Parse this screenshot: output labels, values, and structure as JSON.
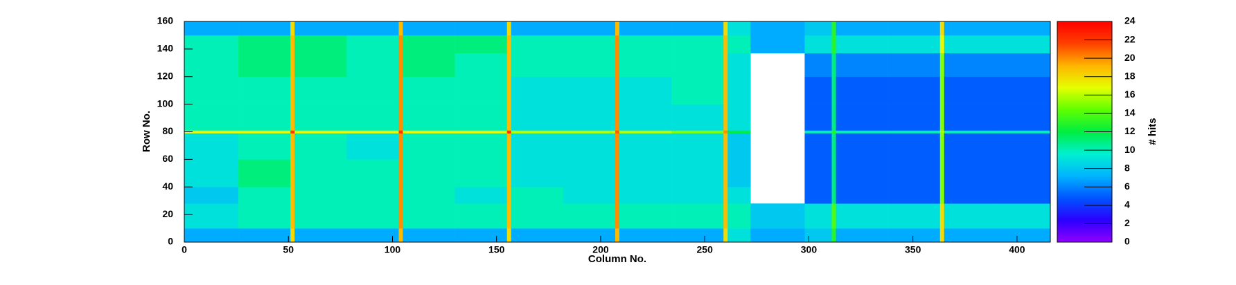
{
  "chart_data": {
    "type": "heatmap",
    "xlabel": "Column No.",
    "ylabel": "Row No.",
    "zlabel": "# hits",
    "xbins": [
      0,
      26,
      51,
      53,
      78,
      103,
      105,
      130,
      155,
      157,
      182,
      207,
      209,
      234,
      259,
      261,
      272,
      298,
      311,
      313,
      338,
      363,
      365,
      390,
      416
    ],
    "ybins": [
      0,
      10,
      28,
      40,
      60,
      79,
      81,
      100,
      120,
      137,
      150,
      160
    ],
    "values": [
      [
        7,
        7,
        18,
        7,
        7,
        19,
        7,
        7,
        18,
        7,
        7,
        19,
        7,
        7,
        18,
        9,
        7,
        8,
        13,
        7,
        7,
        18,
        7,
        7
      ],
      [
        9,
        10,
        19,
        10,
        10,
        20,
        10,
        10,
        19,
        10,
        10,
        20,
        10,
        10,
        19,
        10,
        8,
        9,
        14,
        9,
        9,
        18,
        9,
        9
      ],
      [
        8,
        10,
        19,
        10,
        10,
        20,
        10,
        9,
        19,
        10,
        9,
        20,
        9,
        9,
        19,
        9,
        null,
        5,
        11,
        5,
        5,
        15,
        5,
        5
      ],
      [
        9,
        11,
        19,
        10,
        10,
        20,
        10,
        10,
        19,
        9,
        9,
        20,
        9,
        9,
        19,
        8,
        null,
        5,
        11,
        5,
        5,
        15,
        5,
        5
      ],
      [
        9,
        10,
        19,
        10,
        9,
        20,
        10,
        10,
        19,
        9,
        9,
        20,
        9,
        9,
        19,
        8,
        null,
        5,
        11,
        5,
        5,
        15,
        5,
        5
      ],
      [
        17,
        17,
        22,
        17,
        17,
        22,
        17,
        17,
        22,
        16,
        16,
        21,
        16,
        15,
        20,
        12,
        null,
        10,
        13,
        10,
        10,
        16,
        10,
        10
      ],
      [
        10,
        10,
        19,
        10,
        10,
        20,
        10,
        10,
        19,
        9,
        9,
        20,
        9,
        9,
        19,
        9,
        null,
        5,
        11,
        5,
        5,
        15,
        5,
        5
      ],
      [
        10,
        10,
        19,
        10,
        10,
        20,
        10,
        10,
        19,
        9,
        9,
        20,
        9,
        10,
        19,
        9,
        null,
        5,
        11,
        5,
        5,
        15,
        5,
        5
      ],
      [
        10,
        11,
        19,
        11,
        10,
        20,
        11,
        10,
        19,
        10,
        10,
        20,
        10,
        10,
        19,
        9,
        null,
        6,
        11,
        6,
        6,
        15,
        6,
        6
      ],
      [
        10,
        11,
        19,
        11,
        10,
        20,
        11,
        11,
        19,
        10,
        10,
        20,
        10,
        10,
        19,
        10,
        7,
        9,
        13,
        9,
        9,
        17,
        9,
        9
      ],
      [
        7,
        7,
        18,
        7,
        7,
        19,
        7,
        7,
        18,
        7,
        7,
        19,
        7,
        7,
        18,
        9,
        7,
        8,
        13,
        7,
        7,
        18,
        7,
        7
      ]
    ],
    "xlim": [
      0,
      416
    ],
    "xticks": [
      0,
      50,
      100,
      150,
      200,
      250,
      300,
      350,
      400
    ],
    "ylim": [
      0,
      160
    ],
    "yticks": [
      0,
      20,
      40,
      60,
      80,
      100,
      120,
      140,
      160
    ],
    "zlim": [
      0,
      24
    ],
    "zticks": [
      0,
      2,
      4,
      6,
      8,
      10,
      12,
      14,
      16,
      18,
      20,
      22,
      24
    ],
    "colormap": [
      "#8f00ff",
      "#2a00ff",
      "#0055ff",
      "#00b4ff",
      "#00f0d0",
      "#00ee40",
      "#60ff00",
      "#e6ff00",
      "#ffb400",
      "#ff4000",
      "#ff0000"
    ]
  }
}
